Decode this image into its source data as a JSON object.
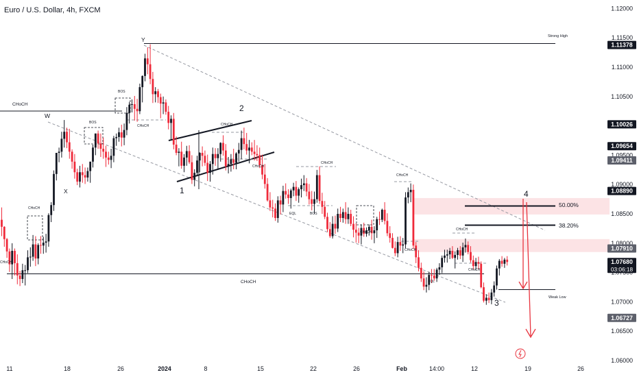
{
  "header": {
    "title": "Euro / U.S. Dollar, 4h, FXCM"
  },
  "colors": {
    "up": "#131722",
    "down": "#ef2a3a",
    "line": "#131722",
    "dash": "#9598a1",
    "zone": "#fbd9dc",
    "arrow": "#e8323d"
  },
  "chart_data": {
    "type": "candlestick",
    "title": "Euro / U.S. Dollar, 4h, FXCM",
    "ylim": [
      1.0575,
      1.1225
    ],
    "y_ticks": [
      "1.12000",
      "1.11500",
      "1.11000",
      "1.10500",
      "1.10000",
      "1.09500",
      "1.09000",
      "1.08500",
      "1.08000",
      "1.07500",
      "1.07000",
      "1.06500",
      "1.06000"
    ],
    "x_ticks": [
      "11",
      "18",
      "26",
      "2024",
      "8",
      "15",
      "22",
      "26",
      "Feb",
      "14:00",
      "12",
      "19",
      "26"
    ],
    "price_labels": [
      {
        "text": "1.11378",
        "value": 1.11378,
        "style": "dark"
      },
      {
        "text": "1.10026",
        "value": 1.10026,
        "style": "dark"
      },
      {
        "text": "1.09654",
        "value": 1.09654,
        "style": "dark"
      },
      {
        "text": "1.09411",
        "value": 1.09411,
        "style": "grey"
      },
      {
        "text": "1.08890",
        "value": 1.0889,
        "style": "dark"
      },
      {
        "text": "1.07910",
        "value": 1.0791,
        "style": "grey"
      },
      {
        "text": "1.07680",
        "value": 1.0768,
        "style": "dark",
        "countdown": "03:06:18"
      },
      {
        "text": "1.06727",
        "value": 1.06727,
        "style": "grey"
      }
    ],
    "annotations": {
      "chochs": [
        "CHoCH",
        "CHoCH",
        "CHoCH",
        "CHoCH",
        "CHoCH",
        "CHoCH",
        "CHoCH",
        "CHoCH",
        "CHoCH",
        "CHoCH",
        "CHoCH",
        "CHoCH",
        "CHoCH",
        "CHoCH",
        "CHoCH",
        "CHoCH"
      ],
      "bos": [
        "BOS",
        "BOS",
        "BOS"
      ],
      "eql": [
        "EQL",
        "EQL"
      ],
      "strong_high": "Strong High",
      "weak_low": "Weak Low",
      "fib_50": "50.00%",
      "fib_382": "38.20%",
      "letters": [
        "W",
        "X",
        "Y"
      ],
      "waves": [
        "1",
        "2",
        "3",
        "4"
      ]
    },
    "ohlc": [
      [
        1.084,
        1.0861,
        1.0812,
        1.0828
      ],
      [
        1.0828,
        1.0829,
        1.0794,
        1.0807
      ],
      [
        1.0807,
        1.0809,
        1.0775,
        1.0786
      ],
      [
        1.0786,
        1.0791,
        1.0751,
        1.0764
      ],
      [
        1.0764,
        1.08,
        1.0739,
        1.0787
      ],
      [
        1.0787,
        1.0791,
        1.0745,
        1.0766
      ],
      [
        1.0766,
        1.0781,
        1.073,
        1.0745
      ],
      [
        1.0745,
        1.0753,
        1.0727,
        1.0739
      ],
      [
        1.0739,
        1.0765,
        1.0732,
        1.0754
      ],
      [
        1.0754,
        1.0763,
        1.0728,
        1.0754
      ],
      [
        1.0754,
        1.0788,
        1.0749,
        1.0776
      ],
      [
        1.0776,
        1.0793,
        1.076,
        1.0777
      ],
      [
        1.0777,
        1.0814,
        1.077,
        1.0798
      ],
      [
        1.0798,
        1.0812,
        1.0761,
        1.0774
      ],
      [
        1.0774,
        1.08,
        1.0764,
        1.0797
      ],
      [
        1.0797,
        1.0812,
        1.0782,
        1.0796
      ],
      [
        1.0796,
        1.0811,
        1.0782,
        1.0801
      ],
      [
        1.0801,
        1.0816,
        1.0784,
        1.0803
      ],
      [
        1.0803,
        1.0851,
        1.0794,
        1.0848
      ],
      [
        1.0848,
        1.087,
        1.0836,
        1.0865
      ],
      [
        1.0865,
        1.0924,
        1.0855,
        1.0918
      ],
      [
        1.0918,
        1.0954,
        1.0907,
        1.0954
      ],
      [
        1.0954,
        1.0963,
        1.0938,
        1.0956
      ],
      [
        1.0956,
        1.099,
        1.0946,
        1.0978
      ],
      [
        1.0978,
        1.101,
        1.0963,
        1.099
      ],
      [
        1.099,
        1.0997,
        1.0962,
        1.0972
      ],
      [
        1.0972,
        1.0995,
        1.0944,
        1.0956
      ],
      [
        1.0956,
        1.096,
        1.0927,
        1.0939
      ],
      [
        1.0939,
        1.0952,
        1.091,
        1.0921
      ],
      [
        1.0921,
        1.0927,
        1.0899,
        1.0905
      ],
      [
        1.0905,
        1.0932,
        1.0895,
        1.0921
      ],
      [
        1.0921,
        1.0935,
        1.0903,
        1.0916
      ],
      [
        1.0916,
        1.0929,
        1.0901,
        1.0912
      ],
      [
        1.0912,
        1.0929,
        1.0905,
        1.0923
      ],
      [
        1.0923,
        1.0939,
        1.0903,
        1.0939
      ],
      [
        1.0939,
        1.0968,
        1.0929,
        1.0963
      ],
      [
        1.0963,
        1.0987,
        1.095,
        1.0987
      ],
      [
        1.0987,
        1.0992,
        1.0961,
        1.097
      ],
      [
        1.097,
        1.0987,
        1.0947,
        1.0961
      ],
      [
        1.0961,
        1.098,
        1.0944,
        1.0956
      ],
      [
        1.0956,
        1.0966,
        1.093,
        1.0946
      ],
      [
        1.0946,
        1.0956,
        1.0934,
        1.0942
      ],
      [
        1.0942,
        1.0961,
        1.0928,
        1.0949
      ],
      [
        1.0949,
        1.0983,
        1.0938,
        1.0979
      ],
      [
        1.0979,
        1.0987,
        1.0966,
        1.0981
      ],
      [
        1.0981,
        1.0997,
        1.0973,
        1.0989
      ],
      [
        1.0989,
        1.1002,
        1.0965,
        1.098
      ],
      [
        1.098,
        1.1004,
        1.0967,
        1.0993
      ],
      [
        1.0993,
        1.1032,
        1.0984,
        1.1022
      ],
      [
        1.1022,
        1.1041,
        1.1004,
        1.1036
      ],
      [
        1.1036,
        1.1045,
        1.1023,
        1.1037
      ],
      [
        1.1037,
        1.1051,
        1.1009,
        1.1029
      ],
      [
        1.1029,
        1.1046,
        1.1007,
        1.1025
      ],
      [
        1.1025,
        1.1072,
        1.102,
        1.1066
      ],
      [
        1.1066,
        1.1086,
        1.104,
        1.1085
      ],
      [
        1.1085,
        1.1123,
        1.1076,
        1.1115
      ],
      [
        1.1115,
        1.1134,
        1.1088,
        1.1105
      ],
      [
        1.1105,
        1.1139,
        1.1071,
        1.108
      ],
      [
        1.108,
        1.1092,
        1.1039,
        1.1054
      ],
      [
        1.1054,
        1.1066,
        1.104,
        1.1059
      ],
      [
        1.1059,
        1.1063,
        1.1039,
        1.1049
      ],
      [
        1.1049,
        1.1055,
        1.1013,
        1.1038
      ],
      [
        1.1038,
        1.105,
        1.102,
        1.104
      ],
      [
        1.104,
        1.1045,
        1.1019,
        1.1024
      ],
      [
        1.1024,
        1.1034,
        1.0994,
        1.1005
      ],
      [
        1.1005,
        1.1018,
        1.0975,
        1.1012
      ],
      [
        1.1012,
        1.1022,
        1.096,
        1.0968
      ],
      [
        1.0968,
        1.0982,
        1.095,
        1.0954
      ],
      [
        1.0954,
        1.0962,
        1.0931,
        1.0956
      ],
      [
        1.0956,
        1.0973,
        1.0927,
        1.0932
      ],
      [
        1.0932,
        1.0952,
        1.0921,
        1.0946
      ],
      [
        1.0946,
        1.0966,
        1.0932,
        1.0957
      ],
      [
        1.0957,
        1.0967,
        1.0935,
        1.0938
      ],
      [
        1.0938,
        1.095,
        1.0901,
        1.0908
      ],
      [
        1.0908,
        1.0926,
        1.0897,
        1.092
      ],
      [
        1.092,
        1.0949,
        1.0914,
        1.0941
      ],
      [
        1.0941,
        1.0955,
        1.0921,
        1.0954
      ],
      [
        1.0954,
        1.0965,
        1.0931,
        1.0949
      ],
      [
        1.0949,
        1.0958,
        1.0932,
        1.0937
      ],
      [
        1.0937,
        1.0951,
        1.0906,
        1.092
      ],
      [
        1.092,
        1.094,
        1.0905,
        1.0935
      ],
      [
        1.0935,
        1.0963,
        1.0917,
        1.0952
      ],
      [
        1.0952,
        1.0962,
        1.0932,
        1.0945
      ],
      [
        1.0945,
        1.0962,
        1.0925,
        1.0952
      ],
      [
        1.0952,
        1.0972,
        1.0939,
        1.0971
      ],
      [
        1.0971,
        1.0984,
        1.0949,
        1.0958
      ],
      [
        1.0958,
        1.0969,
        1.0924,
        1.0931
      ],
      [
        1.0931,
        1.0947,
        1.0919,
        1.0935
      ],
      [
        1.0935,
        1.0952,
        1.0922,
        1.0943
      ],
      [
        1.0943,
        1.0961,
        1.0926,
        1.0937
      ],
      [
        1.0937,
        1.0955,
        1.0926,
        1.0953
      ],
      [
        1.0953,
        1.0971,
        1.0939,
        1.0959
      ],
      [
        1.0959,
        1.0992,
        1.0943,
        1.0979
      ],
      [
        1.0979,
        1.0997,
        1.096,
        1.0969
      ],
      [
        1.0969,
        1.0988,
        1.0951,
        1.0958
      ],
      [
        1.0958,
        1.0976,
        1.0936,
        1.0963
      ],
      [
        1.0963,
        1.0972,
        1.095,
        1.0956
      ],
      [
        1.0956,
        1.0976,
        1.0941,
        1.0952
      ],
      [
        1.0952,
        1.0967,
        1.094,
        1.095
      ],
      [
        1.095,
        1.0963,
        1.0928,
        1.0933
      ],
      [
        1.0933,
        1.0951,
        1.0909,
        1.0917
      ],
      [
        1.0917,
        1.0935,
        1.0893,
        1.0901
      ],
      [
        1.0901,
        1.0911,
        1.0871,
        1.0873
      ],
      [
        1.0873,
        1.0887,
        1.0855,
        1.0861
      ],
      [
        1.0861,
        1.0874,
        1.0844,
        1.0859
      ],
      [
        1.0859,
        1.0868,
        1.0838,
        1.0843
      ],
      [
        1.0843,
        1.088,
        1.0835,
        1.0873
      ],
      [
        1.0873,
        1.0881,
        1.0849,
        1.0866
      ],
      [
        1.0866,
        1.0898,
        1.0853,
        1.0889
      ],
      [
        1.0889,
        1.0902,
        1.0876,
        1.0883
      ],
      [
        1.0883,
        1.0892,
        1.0867,
        1.0877
      ],
      [
        1.0877,
        1.0893,
        1.0859,
        1.089
      ],
      [
        1.089,
        1.0903,
        1.088,
        1.0896
      ],
      [
        1.0896,
        1.0906,
        1.0872,
        1.0881
      ],
      [
        1.0881,
        1.0895,
        1.0869,
        1.0892
      ],
      [
        1.0892,
        1.091,
        1.0878,
        1.0899
      ],
      [
        1.0899,
        1.0916,
        1.0889,
        1.0902
      ],
      [
        1.0902,
        1.0911,
        1.088,
        1.0888
      ],
      [
        1.0888,
        1.0901,
        1.0866,
        1.0875
      ],
      [
        1.0875,
        1.0889,
        1.0856,
        1.0867
      ],
      [
        1.0867,
        1.0888,
        1.085,
        1.0875
      ],
      [
        1.0875,
        1.0925,
        1.0869,
        1.0916
      ],
      [
        1.0916,
        1.0931,
        1.0867,
        1.0872
      ],
      [
        1.0872,
        1.0886,
        1.085,
        1.0862
      ],
      [
        1.0862,
        1.0872,
        1.0841,
        1.0845
      ],
      [
        1.0845,
        1.0852,
        1.0819,
        1.0824
      ],
      [
        1.0824,
        1.0836,
        1.0809,
        1.0812
      ],
      [
        1.0812,
        1.0846,
        1.0808,
        1.0833
      ],
      [
        1.0833,
        1.0847,
        1.0816,
        1.0825
      ],
      [
        1.0825,
        1.0859,
        1.0819,
        1.085
      ],
      [
        1.085,
        1.0862,
        1.0836,
        1.0843
      ],
      [
        1.0843,
        1.0859,
        1.0835,
        1.0853
      ],
      [
        1.0853,
        1.087,
        1.0833,
        1.0841
      ],
      [
        1.0841,
        1.0861,
        1.0833,
        1.085
      ],
      [
        1.085,
        1.0857,
        1.0829,
        1.0833
      ],
      [
        1.0833,
        1.0846,
        1.081,
        1.0823
      ],
      [
        1.0823,
        1.0834,
        1.0801,
        1.0818
      ],
      [
        1.0818,
        1.0826,
        1.08,
        1.0813
      ],
      [
        1.0813,
        1.0832,
        1.0798,
        1.0826
      ],
      [
        1.0826,
        1.0835,
        1.0811,
        1.0816
      ],
      [
        1.0816,
        1.0827,
        1.0811,
        1.0822
      ],
      [
        1.0822,
        1.0832,
        1.0813,
        1.0828
      ],
      [
        1.0828,
        1.084,
        1.0806,
        1.0817
      ],
      [
        1.0817,
        1.0829,
        1.08,
        1.0822
      ],
      [
        1.0822,
        1.0845,
        1.0809,
        1.0841
      ],
      [
        1.0841,
        1.0854,
        1.0831,
        1.084
      ],
      [
        1.084,
        1.0859,
        1.0836,
        1.0857
      ],
      [
        1.0857,
        1.087,
        1.0832,
        1.0838
      ],
      [
        1.0838,
        1.0851,
        1.0812,
        1.0817
      ],
      [
        1.0817,
        1.0829,
        1.0801,
        1.0809
      ],
      [
        1.0809,
        1.0817,
        1.0791,
        1.0792
      ],
      [
        1.0792,
        1.0803,
        1.0778,
        1.0783
      ],
      [
        1.0783,
        1.0811,
        1.0776,
        1.0802
      ],
      [
        1.0802,
        1.0812,
        1.0787,
        1.0796
      ],
      [
        1.0796,
        1.0809,
        1.0783,
        1.0798
      ],
      [
        1.0798,
        1.0887,
        1.0791,
        1.0878
      ],
      [
        1.0878,
        1.0895,
        1.0868,
        1.0887
      ],
      [
        1.0887,
        1.0902,
        1.087,
        1.0891
      ],
      [
        1.0891,
        1.09,
        1.079,
        1.0796
      ],
      [
        1.0796,
        1.0802,
        1.0766,
        1.0776
      ],
      [
        1.0776,
        1.0788,
        1.0752,
        1.0758
      ],
      [
        1.0758,
        1.0767,
        1.0734,
        1.074
      ],
      [
        1.074,
        1.0752,
        1.072,
        1.0726
      ],
      [
        1.0726,
        1.0742,
        1.0716,
        1.0729
      ],
      [
        1.0729,
        1.0751,
        1.072,
        1.0746
      ],
      [
        1.0746,
        1.0756,
        1.0732,
        1.0745
      ],
      [
        1.0745,
        1.0756,
        1.0736,
        1.074
      ],
      [
        1.074,
        1.0758,
        1.0734,
        1.0755
      ],
      [
        1.0755,
        1.0766,
        1.0746,
        1.0759
      ],
      [
        1.0759,
        1.0779,
        1.0749,
        1.0775
      ],
      [
        1.0775,
        1.0789,
        1.0767,
        1.0779
      ],
      [
        1.0779,
        1.0789,
        1.0767,
        1.0781
      ],
      [
        1.0781,
        1.0792,
        1.0773,
        1.0787
      ],
      [
        1.0787,
        1.0795,
        1.0773,
        1.0775
      ],
      [
        1.0775,
        1.0786,
        1.0757,
        1.078
      ],
      [
        1.078,
        1.0792,
        1.0772,
        1.0788
      ],
      [
        1.0788,
        1.0795,
        1.0773,
        1.0779
      ],
      [
        1.0779,
        1.0801,
        1.0768,
        1.0793
      ],
      [
        1.0793,
        1.0808,
        1.0784,
        1.0797
      ],
      [
        1.0797,
        1.0803,
        1.0781,
        1.0785
      ],
      [
        1.0785,
        1.0795,
        1.0767,
        1.0771
      ],
      [
        1.0771,
        1.0779,
        1.0755,
        1.0761
      ],
      [
        1.0761,
        1.0775,
        1.0754,
        1.0768
      ],
      [
        1.0768,
        1.0777,
        1.0756,
        1.0765
      ],
      [
        1.0765,
        1.0769,
        1.0723,
        1.0725
      ],
      [
        1.0725,
        1.0733,
        1.0699,
        1.0702
      ],
      [
        1.0702,
        1.0713,
        1.0695,
        1.0707
      ],
      [
        1.0707,
        1.0716,
        1.0698,
        1.0703
      ],
      [
        1.0703,
        1.0722,
        1.0696,
        1.0716
      ],
      [
        1.0716,
        1.0735,
        1.0709,
        1.0728
      ],
      [
        1.0728,
        1.0762,
        1.0721,
        1.0757
      ],
      [
        1.0757,
        1.0773,
        1.0745,
        1.077
      ],
      [
        1.077,
        1.0778,
        1.076,
        1.0765
      ],
      [
        1.0765,
        1.0775,
        1.0758,
        1.0772
      ],
      [
        1.0772,
        1.0778,
        1.0762,
        1.0768
      ]
    ]
  }
}
